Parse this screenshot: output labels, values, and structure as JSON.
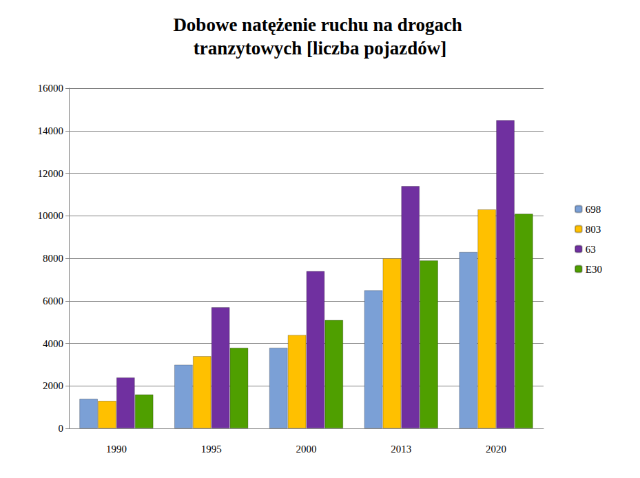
{
  "chart_data": {
    "type": "bar",
    "title": "Dobowe natężenie ruchu na drogach tranzytowych [liczba pojazdów]",
    "categories": [
      "1990",
      "1995",
      "2000",
      "2013",
      "2020"
    ],
    "series": [
      {
        "name": "698",
        "color": "#7ba0d6",
        "values": [
          1400,
          3000,
          3800,
          6500,
          8300
        ]
      },
      {
        "name": "803",
        "color": "#ffc000",
        "values": [
          1300,
          3400,
          4400,
          8000,
          10300
        ]
      },
      {
        "name": "63",
        "color": "#7030a0",
        "values": [
          2400,
          5700,
          7400,
          11400,
          14500
        ]
      },
      {
        "name": "E30",
        "color": "#4f9f00",
        "values": [
          1600,
          3800,
          5100,
          7900,
          10100
        ]
      }
    ],
    "ylim": [
      0,
      16000
    ],
    "yticks": [
      0,
      2000,
      4000,
      6000,
      8000,
      10000,
      12000,
      14000,
      16000
    ],
    "grid": true,
    "legend": "right"
  }
}
